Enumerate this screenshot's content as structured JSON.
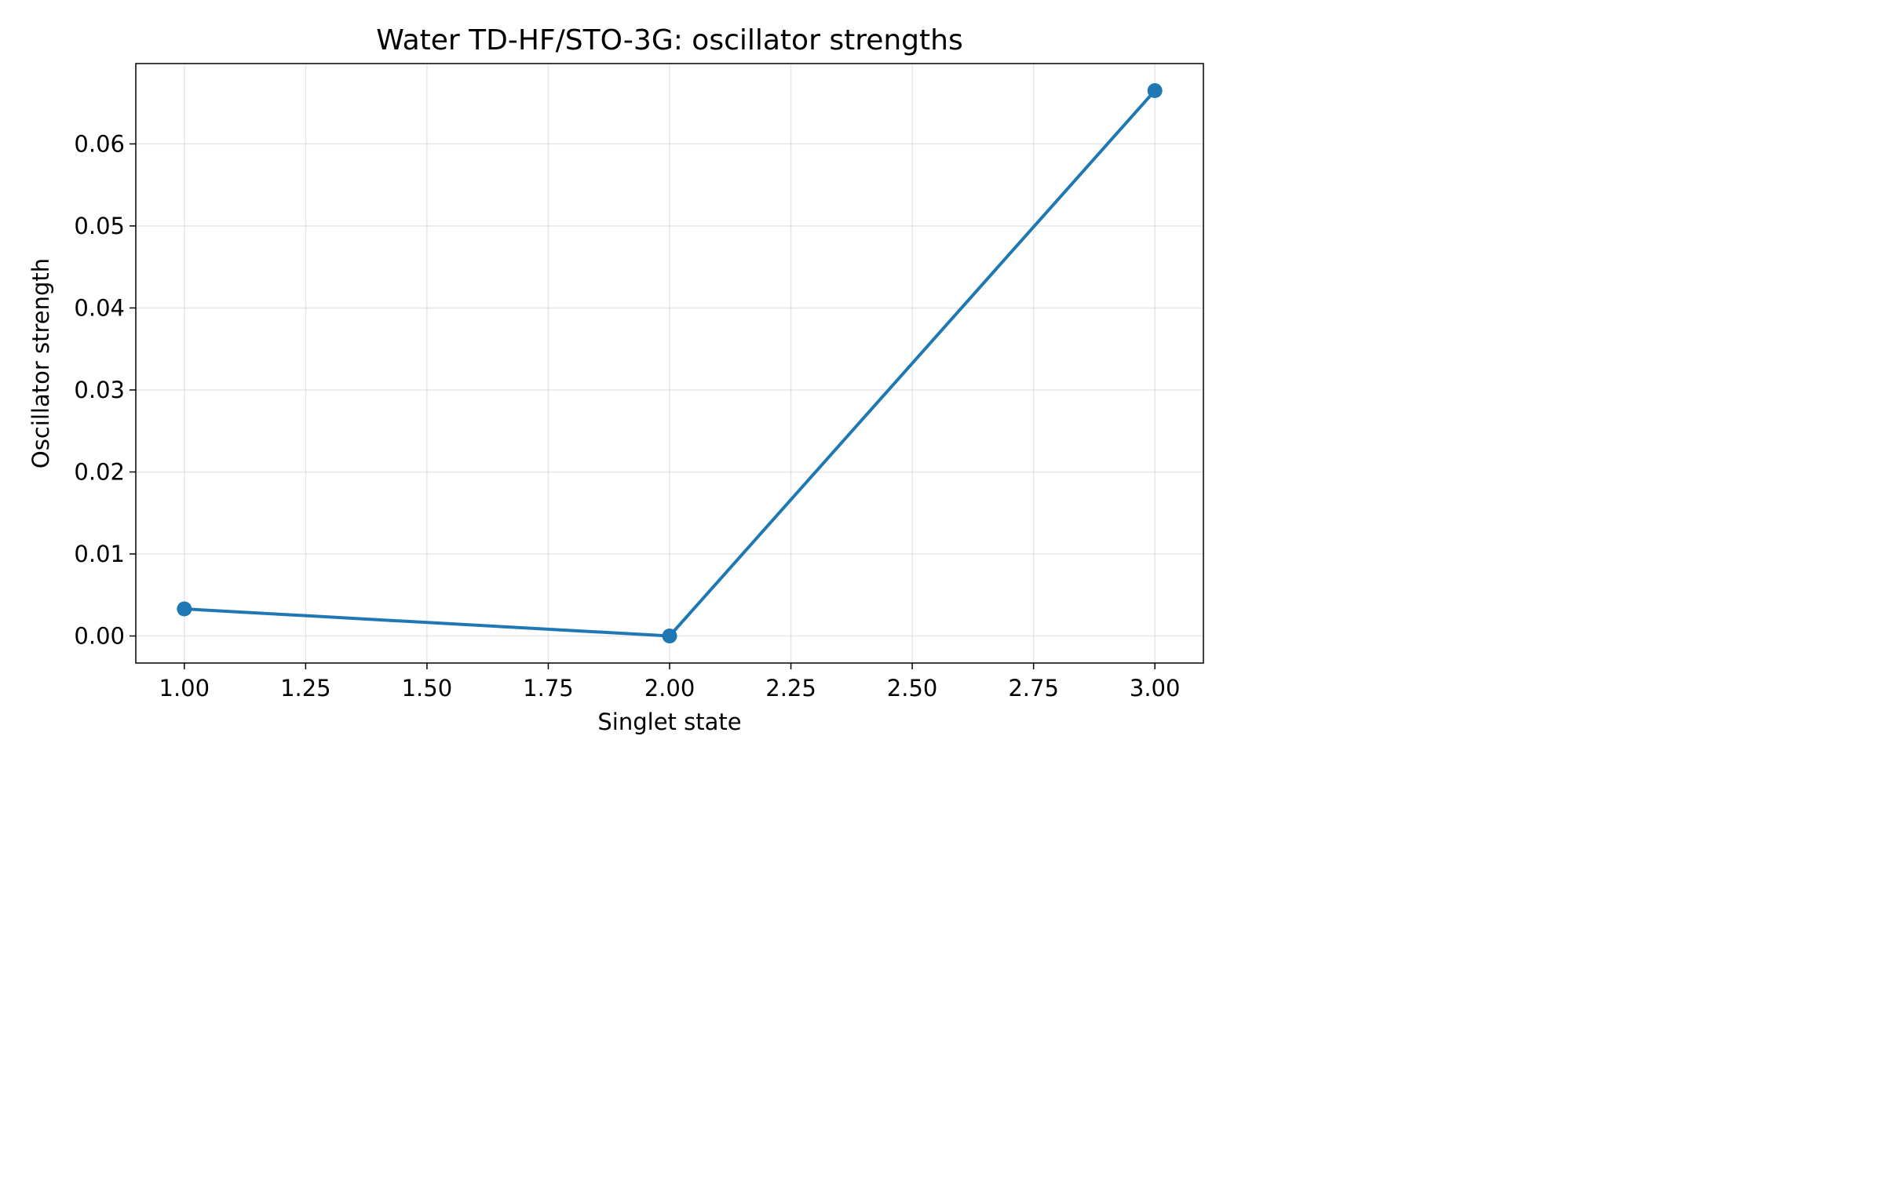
{
  "chart_data": {
    "type": "line",
    "title": "Water TD-HF/STO-3G: oscillator strengths",
    "xlabel": "Singlet state",
    "ylabel": "Oscillator strength",
    "x": [
      1,
      2,
      3
    ],
    "series": [
      {
        "values": [
          0.0033,
          0.0,
          0.0665
        ],
        "color": "#1f77b4",
        "marker": "circle"
      }
    ],
    "xlim": [
      0.9,
      3.1
    ],
    "ylim": [
      -0.0033,
      0.0698
    ],
    "xticks": [
      1.0,
      1.25,
      1.5,
      1.75,
      2.0,
      2.25,
      2.5,
      2.75,
      3.0
    ],
    "xtick_labels": [
      "1.00",
      "1.25",
      "1.50",
      "1.75",
      "2.00",
      "2.25",
      "2.50",
      "2.75",
      "3.00"
    ],
    "yticks": [
      0.0,
      0.01,
      0.02,
      0.03,
      0.04,
      0.05,
      0.06
    ],
    "ytick_labels": [
      "0.00",
      "0.01",
      "0.02",
      "0.03",
      "0.04",
      "0.05",
      "0.06"
    ],
    "grid": true,
    "legend": "none"
  }
}
